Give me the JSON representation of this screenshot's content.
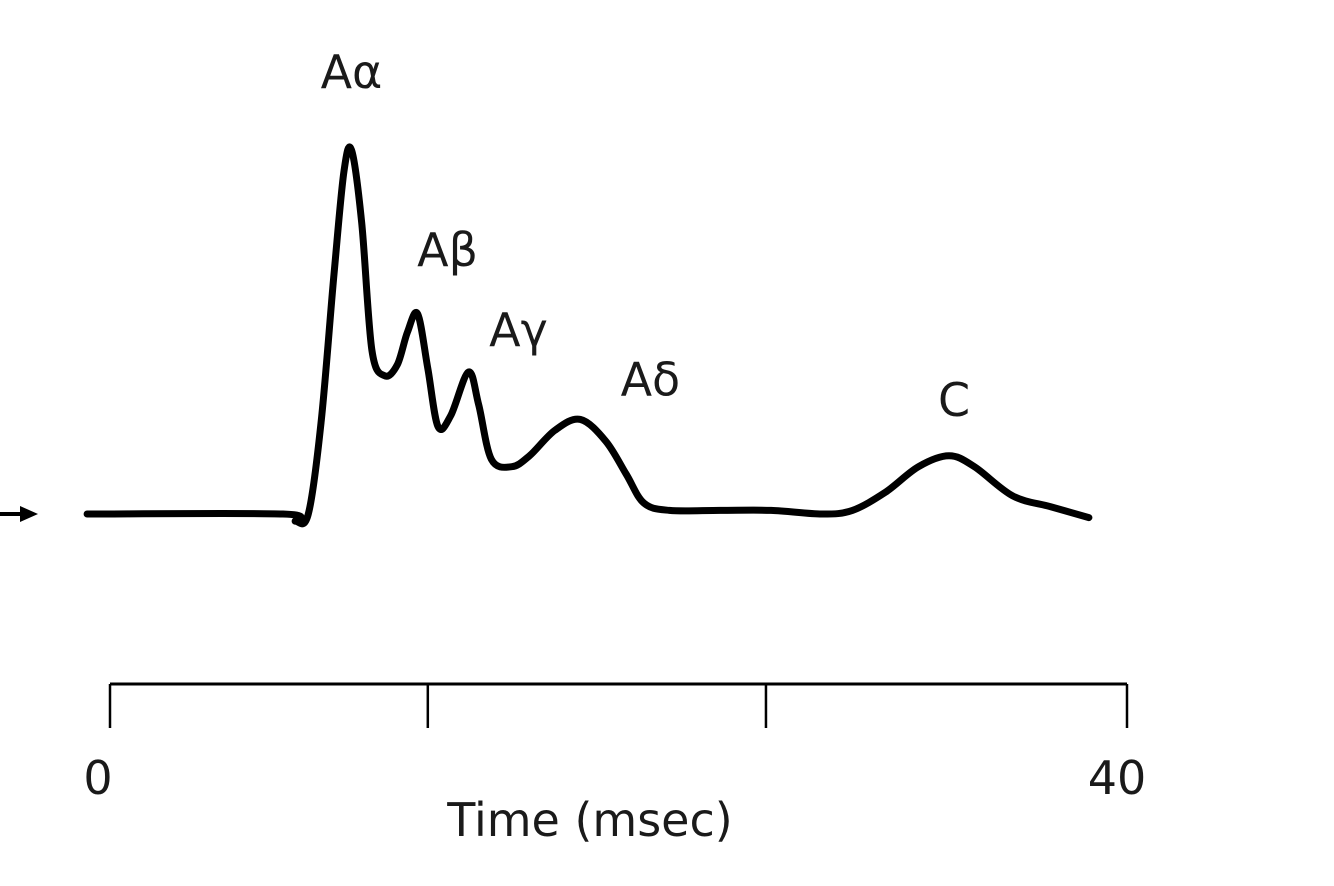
{
  "chart_data": {
    "type": "line",
    "title": "",
    "xlabel": "Time (msec)",
    "ylabel": "",
    "x_tick_labels": [
      "0",
      "40"
    ],
    "xlim": [
      0,
      40
    ],
    "x_ticks": [
      0,
      12.5,
      25.8,
      40
    ],
    "grid": false,
    "legend": "none",
    "line_color": "#000000",
    "series": [
      {
        "points": [
          {
            "x": -0.9,
            "y": 0.0
          },
          {
            "x": 6.8,
            "y": 0.0
          },
          {
            "x": 7.3,
            "y": -0.02
          },
          {
            "x": 7.8,
            "y": 0.0
          },
          {
            "x": 8.3,
            "y": 0.25
          },
          {
            "x": 8.8,
            "y": 0.65
          },
          {
            "x": 9.2,
            "y": 0.94
          },
          {
            "x": 9.5,
            "y": 1.0
          },
          {
            "x": 9.9,
            "y": 0.8
          },
          {
            "x": 10.3,
            "y": 0.45
          },
          {
            "x": 10.8,
            "y": 0.38
          },
          {
            "x": 11.3,
            "y": 0.41
          },
          {
            "x": 11.7,
            "y": 0.5
          },
          {
            "x": 12.1,
            "y": 0.55
          },
          {
            "x": 12.5,
            "y": 0.4
          },
          {
            "x": 12.9,
            "y": 0.24
          },
          {
            "x": 13.4,
            "y": 0.27
          },
          {
            "x": 14.1,
            "y": 0.39
          },
          {
            "x": 14.5,
            "y": 0.3
          },
          {
            "x": 15.0,
            "y": 0.15
          },
          {
            "x": 15.8,
            "y": 0.13
          },
          {
            "x": 16.5,
            "y": 0.16
          },
          {
            "x": 17.5,
            "y": 0.23
          },
          {
            "x": 18.5,
            "y": 0.26
          },
          {
            "x": 19.5,
            "y": 0.2
          },
          {
            "x": 20.3,
            "y": 0.11
          },
          {
            "x": 21.0,
            "y": 0.03
          },
          {
            "x": 22.0,
            "y": 0.01
          },
          {
            "x": 24.0,
            "y": 0.01
          },
          {
            "x": 26.0,
            "y": 0.01
          },
          {
            "x": 28.0,
            "y": 0.0
          },
          {
            "x": 29.2,
            "y": 0.01
          },
          {
            "x": 30.5,
            "y": 0.06
          },
          {
            "x": 31.8,
            "y": 0.13
          },
          {
            "x": 33.0,
            "y": 0.16
          },
          {
            "x": 34.0,
            "y": 0.13
          },
          {
            "x": 35.5,
            "y": 0.05
          },
          {
            "x": 37.0,
            "y": 0.02
          },
          {
            "x": 38.5,
            "y": -0.01
          }
        ]
      }
    ],
    "annotations": [
      {
        "text": "Aα",
        "x": 9.5,
        "y": 1.0
      },
      {
        "text": "Aβ",
        "x": 12.1,
        "y": 0.55
      },
      {
        "text": "Aγ",
        "x": 14.1,
        "y": 0.39
      },
      {
        "text": "Aδ",
        "x": 18.5,
        "y": 0.26
      },
      {
        "text": "C",
        "x": 33.0,
        "y": 0.16
      }
    ]
  }
}
